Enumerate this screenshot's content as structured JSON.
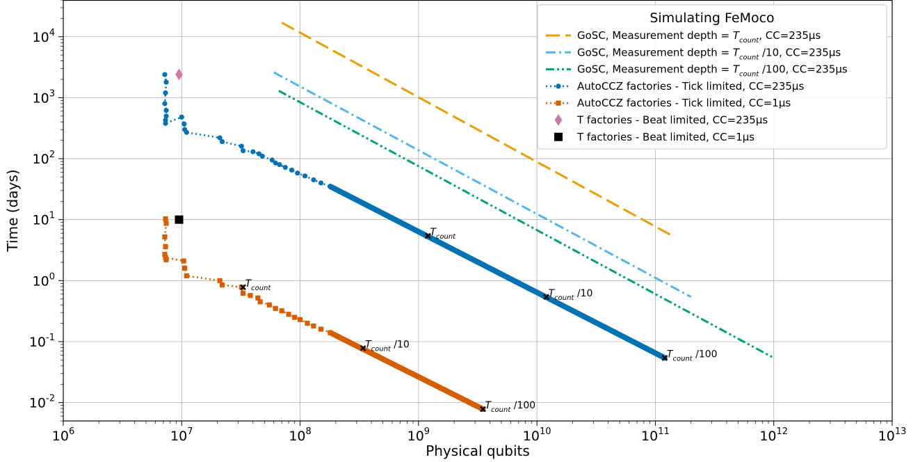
{
  "chart_data": {
    "type": "line",
    "title": "",
    "xlabel": "Physical qubits",
    "ylabel": "Time (days)",
    "xscale": "log",
    "yscale": "log",
    "xlim": [
      1000000,
      10000000000000
    ],
    "ylim": [
      0.005,
      40000
    ],
    "grid": true,
    "x_ticks": [
      {
        "base": "10",
        "exp": "6"
      },
      {
        "base": "10",
        "exp": "7"
      },
      {
        "base": "10",
        "exp": "8"
      },
      {
        "base": "10",
        "exp": "9"
      },
      {
        "base": "10",
        "exp": "10"
      },
      {
        "base": "10",
        "exp": "11"
      },
      {
        "base": "10",
        "exp": "12"
      },
      {
        "base": "10",
        "exp": "13"
      }
    ],
    "y_ticks": [
      {
        "base": "10",
        "exp": "-2"
      },
      {
        "base": "10",
        "exp": "-1"
      },
      {
        "base": "10",
        "exp": "0"
      },
      {
        "base": "10",
        "exp": "1"
      },
      {
        "base": "10",
        "exp": "2"
      },
      {
        "base": "10",
        "exp": "3"
      },
      {
        "base": "10",
        "exp": "4"
      }
    ],
    "legend": {
      "title": "Simulating FeMoco",
      "position": "upper-right",
      "entries": [
        {
          "parts": [
            "GoSC, Measurement depth = ",
            "T",
            "count",
            ", CC=235μs"
          ]
        },
        {
          "parts": [
            "GoSC, Measurement depth = ",
            "T",
            "count",
            " /10, CC=235μs"
          ]
        },
        {
          "parts": [
            "GoSC,  Measurement depth = ",
            "T",
            "count",
            " /100, CC=235μs"
          ]
        },
        {
          "parts": [
            "AutoCCZ factories - Tick limited, CC=235μs",
            "",
            "",
            ""
          ]
        },
        {
          "parts": [
            "AutoCCZ factories - Tick limited, CC=1μs",
            "",
            "",
            ""
          ]
        },
        {
          "parts": [
            "T factories - Beat limited, CC=235μs",
            "",
            "",
            ""
          ]
        },
        {
          "parts": [
            "T factories - Beat limited, CC=1μs",
            "",
            "",
            ""
          ]
        }
      ]
    },
    "series": [
      {
        "style": "dashed",
        "color": "#E69F00",
        "x": [
          70000000,
          140000000000
        ],
        "y": [
          17000,
          5.4
        ]
      },
      {
        "style": "dashdot",
        "color": "#56B4E9",
        "x": [
          60000000,
          200000000000
        ],
        "y": [
          2600,
          0.54
        ]
      },
      {
        "style": "dashdotdot",
        "color": "#009E73",
        "x": [
          66000000,
          1000000000000
        ],
        "y": [
          1300,
          0.054
        ]
      },
      {
        "style": "dotted-markers",
        "color": "#0072B2",
        "marker": "circle",
        "x": [
          7200000,
          7400000,
          7300000,
          7200000,
          7400000,
          7400000,
          7300000,
          7300000,
          10000000,
          10500000,
          10600000,
          11000000,
          21000000,
          22000000,
          32000000,
          33000000,
          40000000,
          45000000,
          48000000,
          58000000,
          62000000,
          67000000,
          75000000,
          85000000,
          95000000,
          110000000,
          130000000,
          150000000,
          180000000
        ],
        "y": [
          2400,
          1800,
          1200,
          800,
          620,
          500,
          430,
          380,
          480,
          370,
          300,
          270,
          220,
          190,
          160,
          135,
          130,
          120,
          110,
          95,
          85,
          80,
          72,
          65,
          58,
          52,
          45,
          40,
          35
        ],
        "line_x": [
          180000000,
          120000000000
        ],
        "line_y": [
          35,
          0.054
        ]
      },
      {
        "style": "dotted-markers",
        "color": "#D55E00",
        "marker": "square",
        "x": [
          7300000,
          7400000,
          7200000,
          7300000,
          7200000,
          7400000,
          7300000,
          10400000,
          10600000,
          11000000,
          21000000,
          22000000,
          32000000,
          33000000,
          38000000,
          44000000,
          46000000,
          55000000,
          62000000,
          70000000,
          80000000,
          90000000,
          100000000,
          115000000,
          130000000,
          150000000,
          180000000
        ],
        "y": [
          10.3,
          8.7,
          5.2,
          3.6,
          2.7,
          2.2,
          2.4,
          2.1,
          1.6,
          1.2,
          1.0,
          0.85,
          0.78,
          0.62,
          0.57,
          0.52,
          0.45,
          0.4,
          0.35,
          0.32,
          0.28,
          0.25,
          0.23,
          0.2,
          0.18,
          0.16,
          0.14
        ],
        "line_x": [
          180000000,
          3500000000
        ],
        "line_y": [
          0.14,
          0.0078
        ]
      },
      {
        "style": "marker",
        "color": "#CC79A7",
        "marker": "diamond",
        "x": [
          9500000
        ],
        "y": [
          2400
        ]
      },
      {
        "style": "marker",
        "color": "#000000",
        "marker": "square",
        "x": [
          9500000
        ],
        "y": [
          10
        ]
      }
    ],
    "annotations": [
      {
        "x": 33000000,
        "y": 0.78,
        "parts": [
          "T",
          "count",
          ""
        ]
      },
      {
        "x": 1200000000,
        "y": 5.4,
        "parts": [
          "T",
          "count",
          ""
        ]
      },
      {
        "x": 340000000,
        "y": 0.078,
        "parts": [
          "T",
          "count",
          " /10"
        ]
      },
      {
        "x": 12000000000,
        "y": 0.54,
        "parts": [
          "T",
          "count",
          " /10"
        ]
      },
      {
        "x": 3500000000,
        "y": 0.0078,
        "parts": [
          "T",
          "count",
          " /100"
        ]
      },
      {
        "x": 120000000000,
        "y": 0.054,
        "parts": [
          "T",
          "count",
          " /100"
        ]
      }
    ]
  }
}
